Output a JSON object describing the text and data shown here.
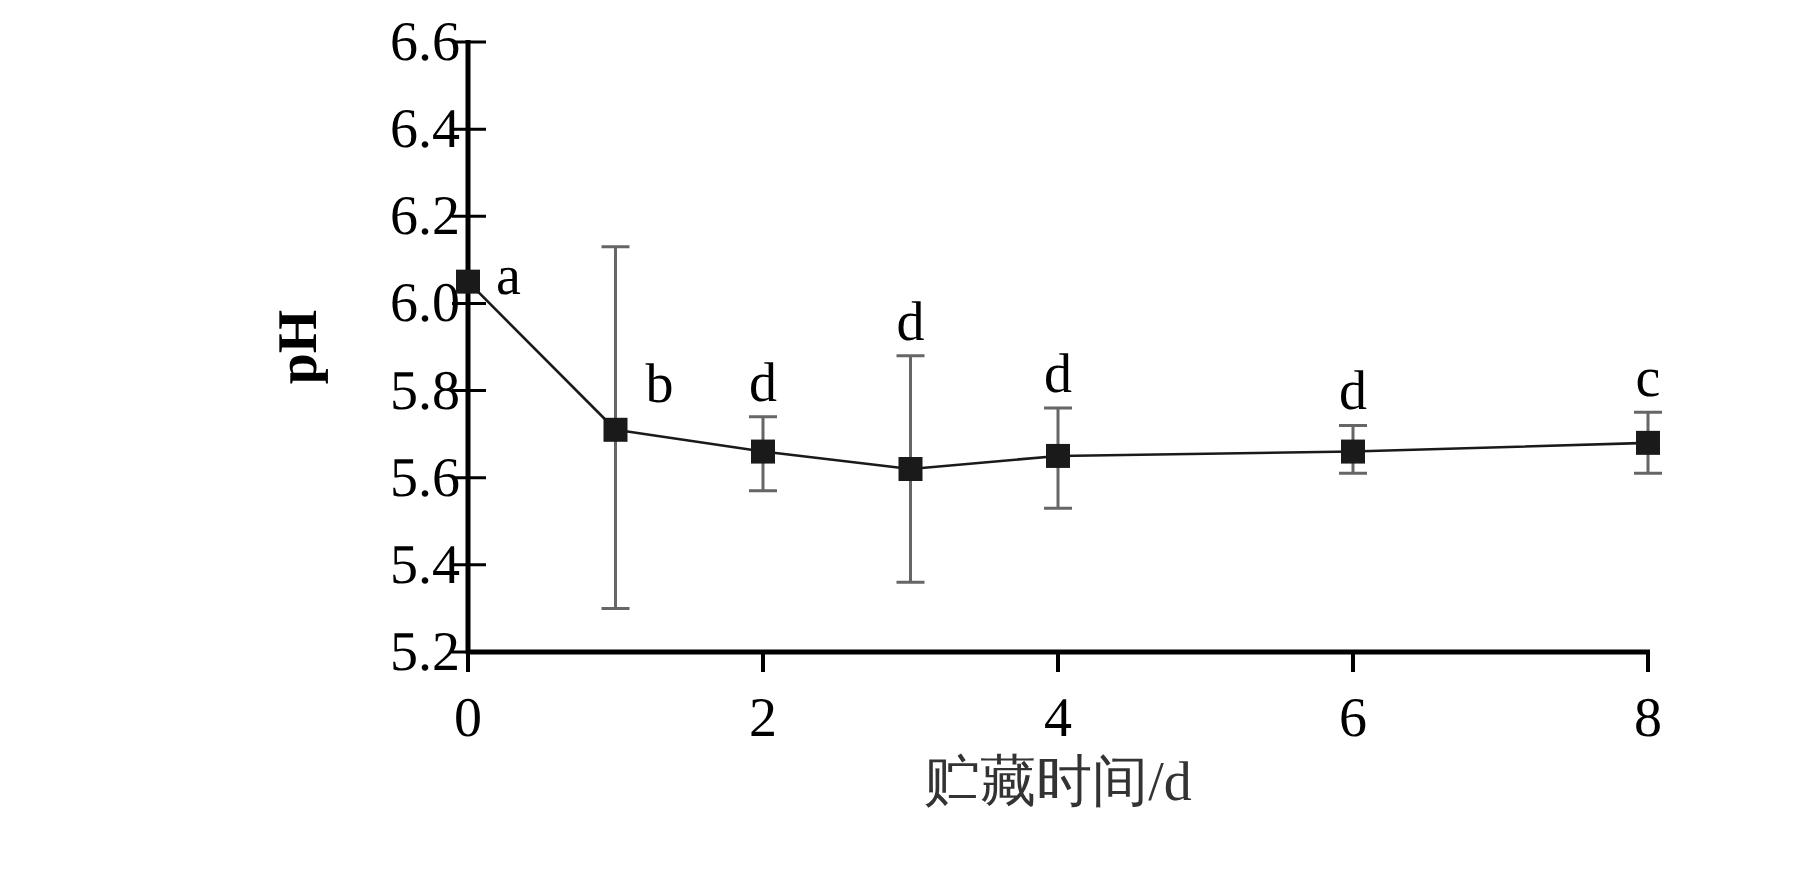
{
  "chart_data": {
    "type": "line",
    "xlabel": "贮藏时间/d",
    "ylabel": "pH",
    "x": [
      0,
      1,
      2,
      3,
      4,
      6,
      8
    ],
    "series": [
      {
        "color": "#1a1a1a",
        "values": [
          6.05,
          5.71,
          5.66,
          5.62,
          5.65,
          5.66,
          5.68
        ],
        "errors": [
          null,
          [
            5.3,
            6.13
          ],
          [
            5.57,
            5.74
          ],
          [
            5.36,
            5.88
          ],
          [
            5.53,
            5.76
          ],
          [
            5.61,
            5.72
          ],
          [
            5.61,
            5.75
          ]
        ]
      }
    ],
    "xlim": [
      0,
      8
    ],
    "xticks": [
      0,
      2,
      4,
      6,
      8
    ],
    "ylim": [
      5.2,
      6.6
    ],
    "yticks": [
      5.2,
      5.4,
      5.6,
      5.8,
      {
        "value": 6.0,
        "label": "6.0"
      },
      6.2,
      6.4,
      6.6
    ],
    "annotations": [
      {
        "text": "a",
        "x": 0,
        "y": 6.05
      },
      {
        "text": "b",
        "x": 1,
        "y": 5.71
      },
      {
        "text": "d",
        "x": 2,
        "y": 5.66
      },
      {
        "text": "d",
        "x": 3,
        "y": 5.62
      },
      {
        "text": "d",
        "x": 4,
        "y": 5.65
      },
      {
        "text": "d",
        "x": 6,
        "y": 5.66
      },
      {
        "text": "c",
        "x": 8,
        "y": 5.68
      }
    ],
    "marker": "square",
    "line_style": "solid"
  }
}
